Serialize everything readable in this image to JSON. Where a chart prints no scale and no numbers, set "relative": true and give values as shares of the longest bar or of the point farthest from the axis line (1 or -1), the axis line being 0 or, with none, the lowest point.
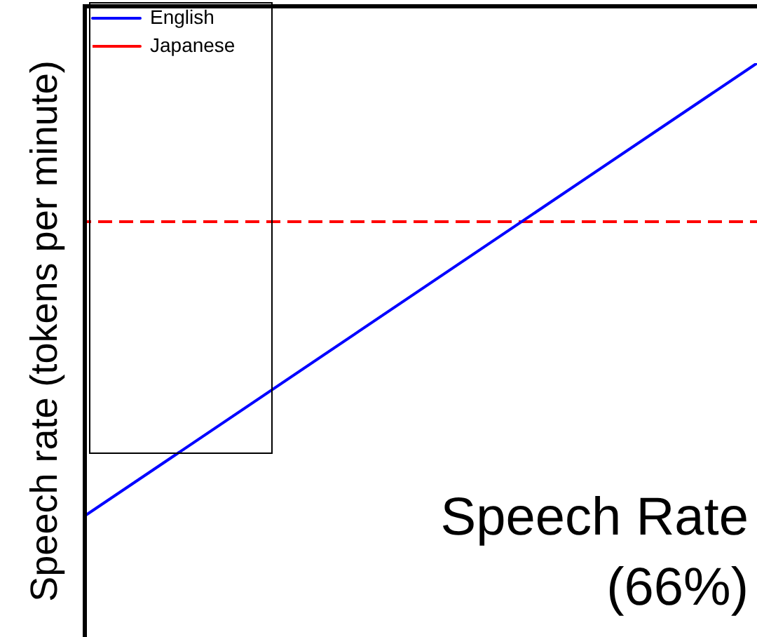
{
  "chart_data": {
    "type": "line",
    "relative": true,
    "ylabel": "Speech rate (tokens per minute)",
    "categories": [
      null,
      null
    ],
    "series": [
      {
        "name": "English",
        "color": "#0000ff",
        "values": [
          0,
          1
        ],
        "line_style": "solid"
      },
      {
        "name": "Japanese",
        "color": "#ff0000",
        "values": [
          0.65,
          0.65
        ],
        "line_style": "dashed"
      }
    ],
    "legend": "top left",
    "annotations": [
      "Speech Rate\n(66%)"
    ]
  }
}
